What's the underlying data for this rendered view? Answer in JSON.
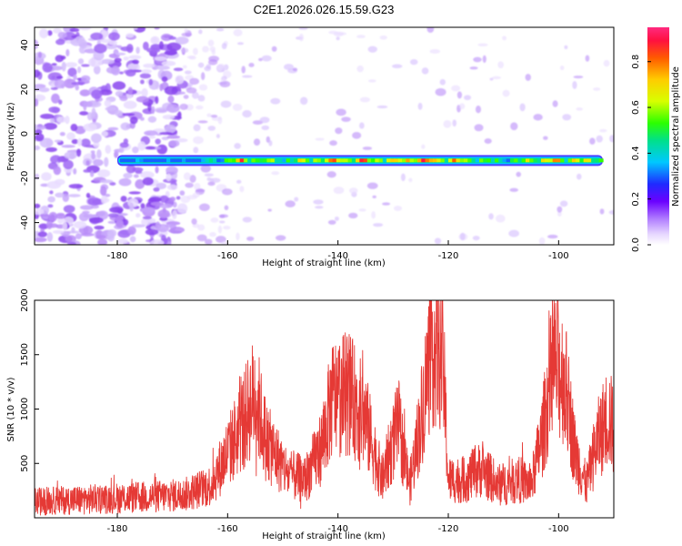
{
  "title": "C2E1.2026.026.15.59.G23",
  "chart_data": [
    {
      "type": "heatmap",
      "xlabel": "Height of straight line (km)",
      "ylabel": "Frequency (Hz)",
      "xlim": [
        -195,
        -90
      ],
      "ylim": [
        -50,
        48
      ],
      "xticks": [
        -180,
        -160,
        -140,
        -120,
        -100
      ],
      "yticks": [
        -40,
        -20,
        0,
        20,
        40
      ],
      "tick_labels_x": [
        "-180",
        "-160",
        "-140",
        "-120",
        "-100"
      ],
      "tick_labels_y": [
        "-40",
        "-20",
        "0",
        "20",
        "40"
      ],
      "band": {
        "frequency_hz": -12,
        "x_start": -180,
        "x_end": -92,
        "amplitude_profile": [
          {
            "x": -180,
            "amp": 0.3
          },
          {
            "x": -172,
            "amp": 0.35
          },
          {
            "x": -166,
            "amp": 0.4
          },
          {
            "x": -158,
            "amp": 0.85
          },
          {
            "x": -150,
            "amp": 0.6
          },
          {
            "x": -144,
            "amp": 0.8
          },
          {
            "x": -136,
            "amp": 0.95
          },
          {
            "x": -130,
            "amp": 0.75
          },
          {
            "x": -126,
            "amp": 0.98
          },
          {
            "x": -121,
            "amp": 0.9
          },
          {
            "x": -116,
            "amp": 0.7
          },
          {
            "x": -110,
            "amp": 0.5
          },
          {
            "x": -104,
            "amp": 0.85
          },
          {
            "x": -98,
            "amp": 0.8
          },
          {
            "x": -92,
            "amp": 0.75
          }
        ]
      },
      "colorbar": {
        "label": "Normalized spectral amplitude",
        "ticks": [
          0.0,
          0.2,
          0.4,
          0.6,
          0.8
        ],
        "tick_labels": [
          "0.0",
          "0.2",
          "0.4",
          "0.6",
          "0.8"
        ],
        "range": [
          0,
          0.95
        ]
      }
    },
    {
      "type": "line",
      "xlabel": "Height of straight line (km)",
      "ylabel": "SNR (10 * v/v)",
      "xlim": [
        -195,
        -90
      ],
      "ylim": [
        0,
        2000
      ],
      "xticks": [
        -180,
        -160,
        -140,
        -120,
        -100
      ],
      "yticks": [
        500,
        1000,
        1500,
        2000
      ],
      "tick_labels_x": [
        "-180",
        "-160",
        "-140",
        "-120",
        "-100"
      ],
      "tick_labels_y": [
        "500",
        "1000",
        "1500",
        "2000"
      ],
      "color": "#e53935",
      "envelope": [
        {
          "x": -195,
          "y": 150
        },
        {
          "x": -185,
          "y": 170
        },
        {
          "x": -175,
          "y": 190
        },
        {
          "x": -168,
          "y": 210
        },
        {
          "x": -163,
          "y": 300
        },
        {
          "x": -160,
          "y": 600
        },
        {
          "x": -157,
          "y": 900
        },
        {
          "x": -155,
          "y": 1150
        },
        {
          "x": -153,
          "y": 700
        },
        {
          "x": -149,
          "y": 400
        },
        {
          "x": -146,
          "y": 350
        },
        {
          "x": -143,
          "y": 650
        },
        {
          "x": -141,
          "y": 1100
        },
        {
          "x": -138,
          "y": 1150
        },
        {
          "x": -135,
          "y": 900
        },
        {
          "x": -132,
          "y": 350
        },
        {
          "x": -130,
          "y": 700
        },
        {
          "x": -129,
          "y": 850
        },
        {
          "x": -127,
          "y": 300
        },
        {
          "x": -125,
          "y": 900
        },
        {
          "x": -123,
          "y": 1600
        },
        {
          "x": -121,
          "y": 1500
        },
        {
          "x": -120,
          "y": 350
        },
        {
          "x": -117,
          "y": 350
        },
        {
          "x": -114,
          "y": 450
        },
        {
          "x": -111,
          "y": 300
        },
        {
          "x": -107,
          "y": 350
        },
        {
          "x": -105,
          "y": 300
        },
        {
          "x": -103,
          "y": 750
        },
        {
          "x": -101,
          "y": 1400
        },
        {
          "x": -99,
          "y": 1300
        },
        {
          "x": -97,
          "y": 600
        },
        {
          "x": -95,
          "y": 300
        },
        {
          "x": -93,
          "y": 700
        },
        {
          "x": -91,
          "y": 950
        },
        {
          "x": -90,
          "y": 800
        }
      ]
    }
  ]
}
